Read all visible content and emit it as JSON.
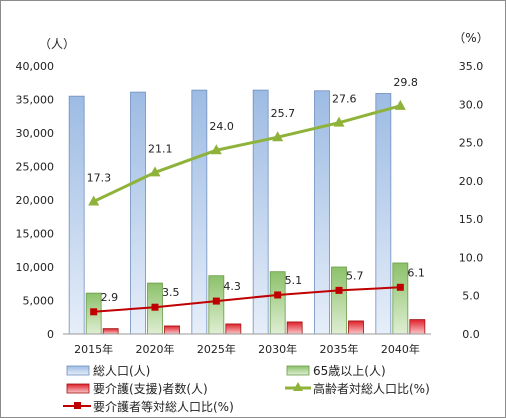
{
  "chart_data": {
    "type": "bar",
    "categories": [
      "2015年",
      "2020年",
      "2025年",
      "2030年",
      "2035年",
      "2040年"
    ],
    "left_axis": {
      "unit": "（人）",
      "range": [
        0,
        40000
      ],
      "ticks": [
        "0",
        "5,000",
        "10,000",
        "15,000",
        "20,000",
        "25,000",
        "30,000",
        "35,000",
        "40,000"
      ]
    },
    "right_axis": {
      "unit": "（%）",
      "range": [
        0,
        35
      ],
      "ticks": [
        "0.0",
        "5.0",
        "10.0",
        "15.0",
        "20.0",
        "25.0",
        "30.0",
        "35.0"
      ]
    },
    "series": [
      {
        "name": "総人口(人)",
        "kind": "bar",
        "axis": "left",
        "color": "#9dbbe3",
        "values": [
          35500,
          36100,
          36400,
          36400,
          36300,
          35900
        ]
      },
      {
        "name": "65歳以上(人)",
        "kind": "bar",
        "axis": "left",
        "color": "#8cc16a",
        "values": [
          6100,
          7600,
          8700,
          9300,
          10000,
          10600
        ]
      },
      {
        "name": "要介護(支援)者数(人)",
        "kind": "bar",
        "axis": "left",
        "color": "#e0202a",
        "values": [
          800,
          1200,
          1500,
          1800,
          1950,
          2150
        ]
      },
      {
        "name": "高齢者対総人口比(%)",
        "kind": "line",
        "axis": "right",
        "color": "#8fb33a",
        "marker": "triangle",
        "values": [
          17.3,
          21.1,
          24.0,
          25.7,
          27.6,
          29.8
        ],
        "labels": [
          "17.3",
          "21.1",
          "24.0",
          "25.7",
          "27.6",
          "29.8"
        ]
      },
      {
        "name": "要介護者等対総人口比(%)",
        "kind": "line",
        "axis": "right",
        "color": "#c00000",
        "marker": "square",
        "values": [
          2.9,
          3.5,
          4.3,
          5.1,
          5.7,
          6.1
        ],
        "labels": [
          "2.9",
          "3.5",
          "4.3",
          "5.1",
          "5.7",
          "6.1"
        ]
      }
    ],
    "grid": false,
    "legend": "bottom"
  }
}
